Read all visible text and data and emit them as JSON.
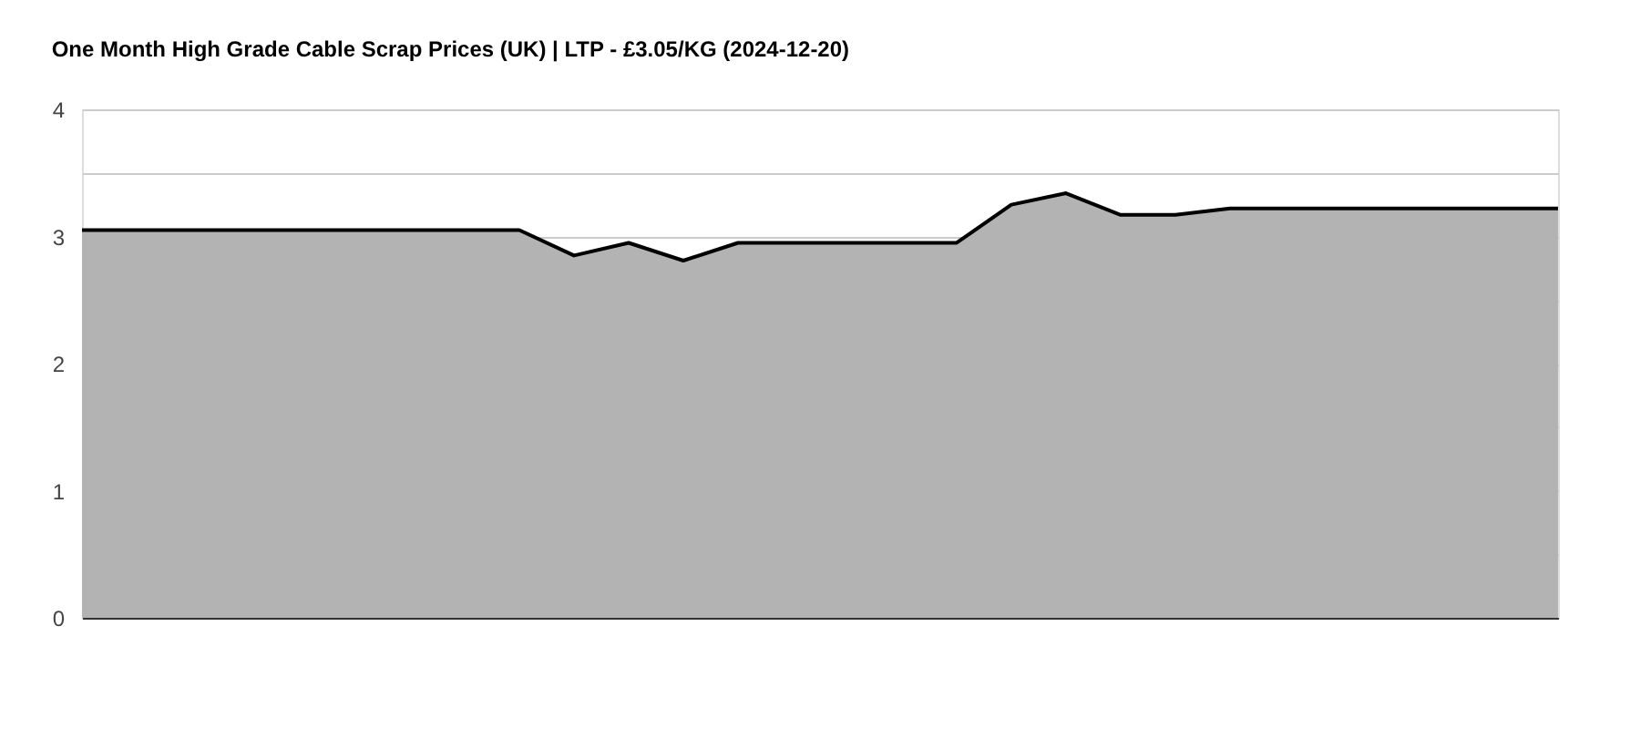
{
  "chart_data": {
    "type": "area",
    "title": "One Month High Grade Cable Scrap Prices (UK) | LTP - £3.05/KG (2024-12-20)",
    "categories": [
      null,
      null,
      null,
      null,
      null,
      null,
      null,
      null,
      null,
      null,
      null,
      null,
      null,
      null,
      null,
      null,
      null,
      null,
      null,
      null,
      null,
      null,
      null,
      null,
      null,
      null,
      null,
      null
    ],
    "series": [
      {
        "color": "#b3b3b3",
        "values": [
          3.05,
          3.05,
          3.05,
          3.05,
          3.05,
          3.05,
          3.05,
          3.05,
          3.05,
          2.85,
          2.95,
          2.81,
          2.95,
          2.95,
          2.95,
          2.95,
          2.95,
          3.25,
          3.34,
          3.17,
          3.17,
          3.22,
          3.22,
          3.22,
          3.22,
          3.22,
          3.22,
          3.22
        ]
      }
    ],
    "ylim": [
      0,
      4
    ],
    "yticks": [
      0,
      {
        "value": 0.5,
        "label": null
      },
      1,
      {
        "value": 1.5,
        "label": null
      },
      2,
      {
        "value": 2.5,
        "label": null
      },
      3,
      {
        "value": 3.5,
        "label": null
      },
      4
    ],
    "grid": "y",
    "tick_labels": "y"
  }
}
